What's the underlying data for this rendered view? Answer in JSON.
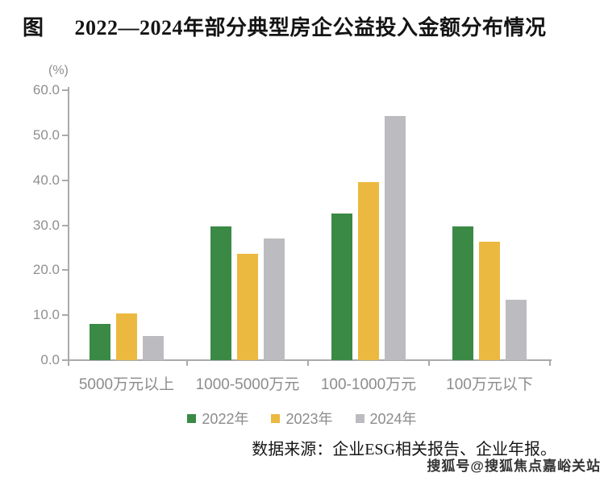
{
  "title": {
    "prefix": "图",
    "text": "2022—2024年部分典型房企公益投入金额分布情况"
  },
  "chart_data": {
    "type": "bar",
    "unit_label": "(%)",
    "categories": [
      "5000万元以上",
      "1000-5000万元",
      "100-1000万元",
      "100万元以下"
    ],
    "series": [
      {
        "name": "2022年",
        "color": "#3a8a46",
        "values": [
          8.0,
          29.7,
          32.6,
          29.7
        ]
      },
      {
        "name": "2023年",
        "color": "#ecb940",
        "values": [
          10.3,
          23.6,
          39.6,
          26.4
        ]
      },
      {
        "name": "2024年",
        "color": "#bcbcc0",
        "values": [
          5.3,
          27.0,
          54.3,
          13.4
        ]
      }
    ],
    "ylim": [
      0,
      60
    ],
    "ytick_step": 10,
    "ytick_labels": [
      "0.0",
      "10.0",
      "20.0",
      "30.0",
      "40.0",
      "50.0",
      "60.0"
    ],
    "grid": false,
    "legend_position": "bottom"
  },
  "source_note": "数据来源：企业ESG相关报告、企业年报。",
  "watermark": "搜狐号@搜狐焦点嘉峪关站",
  "colors": {
    "axis": "#aaaaae",
    "tick_label": "#8f8f8f",
    "category_label": "#8c8c8c",
    "legend_label": "#8c8c8c",
    "title": "#141414",
    "source": "#141414",
    "watermark": "#333333"
  }
}
